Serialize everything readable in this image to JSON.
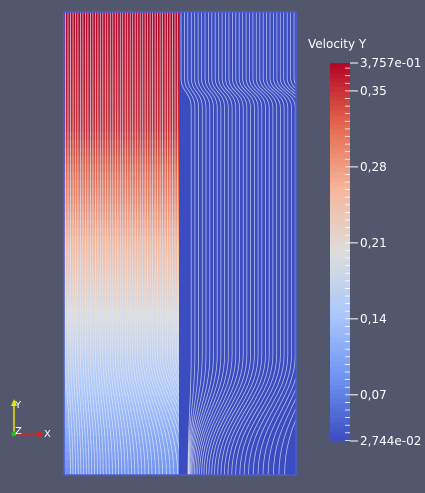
{
  "colorbar": {
    "title": "Velocity Y",
    "max_label": "3,757e-01",
    "min_label": "2,744e-02",
    "ticks": [
      {
        "value": 0.35,
        "label": "0,35"
      },
      {
        "value": 0.28,
        "label": "0,28"
      },
      {
        "value": 0.21,
        "label": "0,21"
      },
      {
        "value": 0.14,
        "label": "0,14"
      },
      {
        "value": 0.07,
        "label": "0,07"
      }
    ],
    "range": [
      0.02744,
      0.3757
    ],
    "colormap": [
      "#3b4cc0",
      "#6f92f3",
      "#aac7fd",
      "#dddddd",
      "#f6b79c",
      "#e56a4f",
      "#b40426"
    ]
  },
  "axes_triad": {
    "y_label": "Y",
    "z_label": "Z",
    "x_label": "X"
  },
  "colors": {
    "background": "#52576e",
    "streamline": "#dfe4f2",
    "domain_edge": "#4a5bd6"
  }
}
